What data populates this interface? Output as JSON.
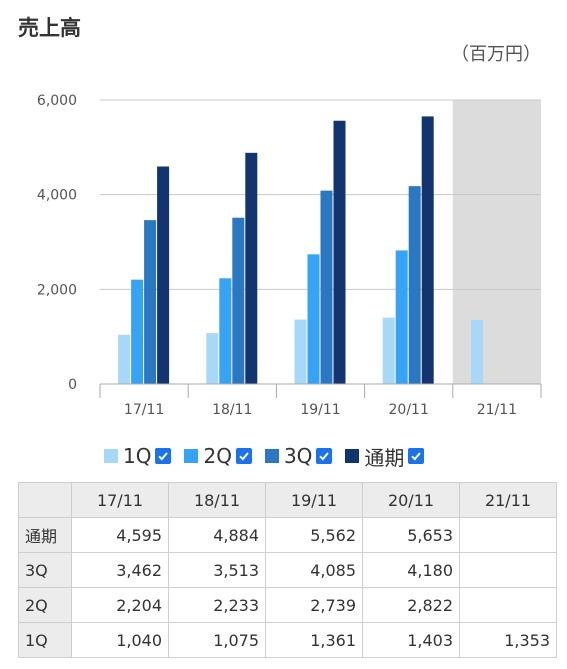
{
  "title": "売上高",
  "unit": "（百万円）",
  "colors": {
    "1Q": "#a8d8f8",
    "2Q": "#36a3f5",
    "3Q": "#2b78c2",
    "通期": "#12356f",
    "shade": "#dcdcdc",
    "checkbox": "#1a73e8"
  },
  "legend": [
    {
      "label": "1Q",
      "color": "#a8d8f8",
      "checked": true
    },
    {
      "label": "2Q",
      "color": "#36a3f5",
      "checked": true
    },
    {
      "label": "3Q",
      "color": "#2b78c2",
      "checked": true
    },
    {
      "label": "通期",
      "color": "#12356f",
      "checked": true
    }
  ],
  "chart_data": {
    "type": "bar",
    "categories": [
      "17/11",
      "18/11",
      "19/11",
      "20/11",
      "21/11"
    ],
    "series": [
      {
        "name": "1Q",
        "values": [
          1040,
          1075,
          1361,
          1403,
          1353
        ]
      },
      {
        "name": "2Q",
        "values": [
          2204,
          2233,
          2739,
          2822,
          null
        ]
      },
      {
        "name": "3Q",
        "values": [
          3462,
          3513,
          4085,
          4180,
          null
        ]
      },
      {
        "name": "通期",
        "values": [
          4595,
          4884,
          5562,
          5653,
          null
        ]
      }
    ],
    "ylim": [
      0,
      6000
    ],
    "yticks": [
      "0",
      "2,000",
      "4,000",
      "6,000"
    ],
    "yticks_values": [
      0,
      2000,
      4000,
      6000
    ],
    "grid": true,
    "highlighted_category": "21/11",
    "legend_position": "bottom"
  },
  "table": {
    "headers": [
      "",
      "17/11",
      "18/11",
      "19/11",
      "20/11",
      "21/11"
    ],
    "rows": [
      {
        "label": "通期",
        "values": [
          "4,595",
          "4,884",
          "5,562",
          "5,653",
          ""
        ]
      },
      {
        "label": "3Q",
        "values": [
          "3,462",
          "3,513",
          "4,085",
          "4,180",
          ""
        ]
      },
      {
        "label": "2Q",
        "values": [
          "2,204",
          "2,233",
          "2,739",
          "2,822",
          ""
        ]
      },
      {
        "label": "1Q",
        "values": [
          "1,040",
          "1,075",
          "1,361",
          "1,403",
          "1,353"
        ]
      }
    ]
  }
}
